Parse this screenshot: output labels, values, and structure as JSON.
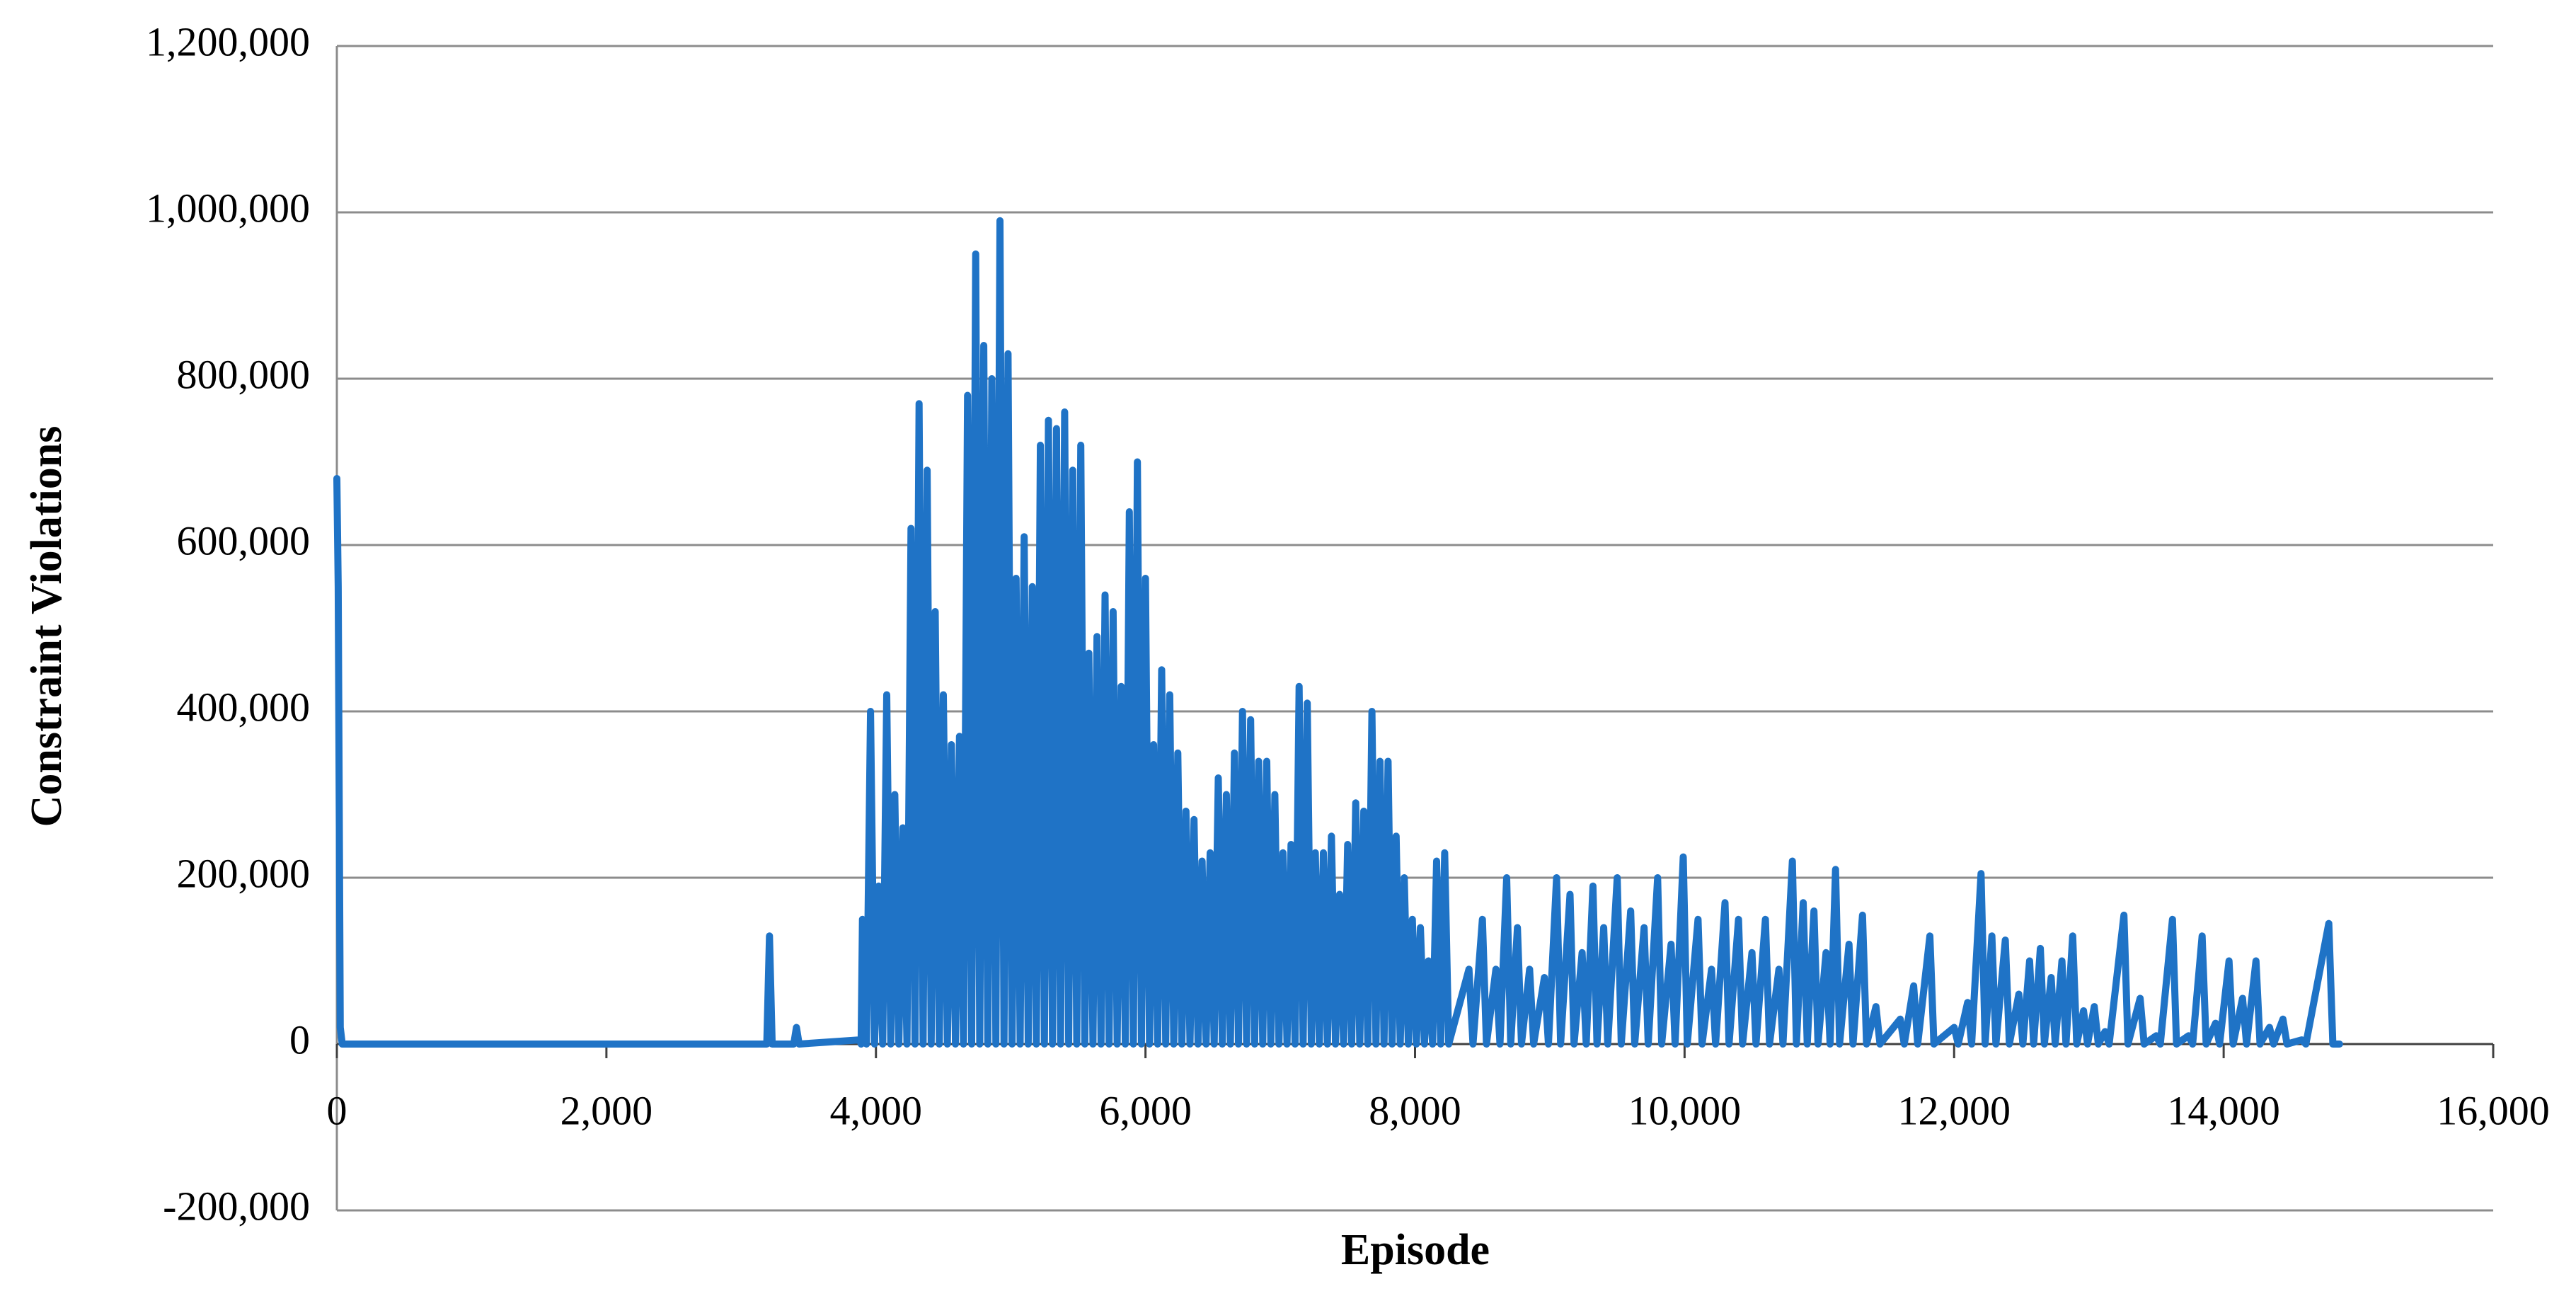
{
  "chart_data": {
    "type": "line",
    "x_label": "Episode",
    "y_label": "Constraint Violations",
    "color": "#1f73c6",
    "grid": true,
    "xlim": [
      0,
      16000
    ],
    "xticks": [
      0,
      {
        "value": 2000,
        "label": "2,000"
      },
      {
        "value": 4000,
        "label": "4,000"
      },
      {
        "value": 6000,
        "label": "6,000"
      },
      {
        "value": 8000,
        "label": "8,000"
      },
      {
        "value": 10000,
        "label": "10,000"
      },
      {
        "value": 12000,
        "label": "12,000"
      },
      {
        "value": 14000,
        "label": "14,000"
      },
      {
        "value": 16000,
        "label": "16,000"
      }
    ],
    "ylim": [
      -200000,
      1200000
    ],
    "yticks": [
      {
        "value": -200000,
        "label": "-200,000"
      },
      0,
      {
        "value": 200000,
        "label": "200,000"
      },
      {
        "value": 400000,
        "label": "400,000"
      },
      {
        "value": 600000,
        "label": "600,000"
      },
      {
        "value": 800000,
        "label": "800,000"
      },
      {
        "value": 1000000,
        "label": "1,000,000"
      },
      {
        "value": 1200000,
        "label": "1,200,000"
      }
    ],
    "x": [
      0,
      10,
      25,
      40,
      3190,
      3210,
      3230,
      3390,
      3410,
      3430,
      3880,
      3890,
      3900,
      3930,
      3960,
      3990,
      4020,
      4050,
      4080,
      4110,
      4140,
      4170,
      4200,
      4230,
      4260,
      4290,
      4320,
      4350,
      4380,
      4410,
      4440,
      4470,
      4500,
      4530,
      4560,
      4590,
      4620,
      4650,
      4680,
      4710,
      4740,
      4770,
      4800,
      4830,
      4860,
      4890,
      4920,
      4950,
      4980,
      5010,
      5040,
      5070,
      5100,
      5130,
      5160,
      5190,
      5220,
      5250,
      5280,
      5310,
      5340,
      5370,
      5400,
      5430,
      5460,
      5490,
      5520,
      5550,
      5580,
      5610,
      5640,
      5670,
      5700,
      5730,
      5760,
      5790,
      5820,
      5850,
      5880,
      5910,
      5940,
      5970,
      6000,
      6030,
      6060,
      6090,
      6120,
      6150,
      6180,
      6210,
      6240,
      6270,
      6300,
      6330,
      6360,
      6390,
      6420,
      6450,
      6480,
      6510,
      6540,
      6570,
      6600,
      6630,
      6660,
      6690,
      6720,
      6750,
      6780,
      6810,
      6840,
      6870,
      6900,
      6930,
      6960,
      6990,
      7020,
      7050,
      7080,
      7110,
      7140,
      7170,
      7200,
      7230,
      7260,
      7290,
      7320,
      7350,
      7380,
      7410,
      7440,
      7470,
      7500,
      7530,
      7560,
      7590,
      7620,
      7650,
      7680,
      7710,
      7740,
      7770,
      7800,
      7830,
      7860,
      7890,
      7920,
      7950,
      7980,
      8010,
      8040,
      8070,
      8100,
      8130,
      8160,
      8190,
      8220,
      8250,
      8400,
      8430,
      8500,
      8530,
      8600,
      8630,
      8680,
      8710,
      8760,
      8790,
      8850,
      8880,
      8960,
      8990,
      9050,
      9080,
      9150,
      9180,
      9240,
      9270,
      9320,
      9350,
      9400,
      9430,
      9500,
      9530,
      9600,
      9630,
      9700,
      9730,
      9800,
      9830,
      9900,
      9930,
      9990,
      10020,
      10100,
      10130,
      10200,
      10230,
      10300,
      10330,
      10400,
      10430,
      10500,
      10530,
      10600,
      10630,
      10700,
      10730,
      10800,
      10830,
      10880,
      10910,
      10960,
      10990,
      11050,
      11080,
      11120,
      11150,
      11220,
      11250,
      11320,
      11350,
      11420,
      11450,
      11600,
      11630,
      11700,
      11730,
      11820,
      11850,
      12000,
      12030,
      12100,
      12130,
      12200,
      12230,
      12280,
      12310,
      12380,
      12410,
      12480,
      12510,
      12560,
      12590,
      12640,
      12670,
      12720,
      12750,
      12800,
      12830,
      12880,
      12910,
      12960,
      12990,
      13040,
      13070,
      13120,
      13150,
      13260,
      13290,
      13380,
      13410,
      13500,
      13530,
      13620,
      13650,
      13740,
      13770,
      13840,
      13870,
      13940,
      13970,
      14040,
      14070,
      14140,
      14170,
      14240,
      14270,
      14340,
      14370,
      14440,
      14470,
      14580,
      14610,
      14780,
      14810,
      14860
    ],
    "values": [
      680000,
      550000,
      20000,
      0,
      0,
      130000,
      0,
      0,
      20000,
      0,
      5000,
      0,
      150000,
      0,
      400000,
      0,
      190000,
      0,
      420000,
      0,
      300000,
      0,
      260000,
      0,
      620000,
      0,
      770000,
      0,
      690000,
      0,
      520000,
      0,
      420000,
      0,
      360000,
      0,
      370000,
      0,
      780000,
      0,
      950000,
      0,
      840000,
      0,
      800000,
      0,
      990000,
      0,
      830000,
      0,
      560000,
      0,
      610000,
      0,
      550000,
      0,
      720000,
      0,
      750000,
      0,
      740000,
      0,
      760000,
      0,
      690000,
      0,
      720000,
      0,
      470000,
      0,
      490000,
      0,
      540000,
      0,
      520000,
      0,
      430000,
      0,
      640000,
      0,
      700000,
      0,
      560000,
      0,
      360000,
      0,
      450000,
      0,
      420000,
      0,
      350000,
      0,
      280000,
      0,
      270000,
      0,
      220000,
      0,
      230000,
      0,
      320000,
      0,
      300000,
      0,
      350000,
      0,
      400000,
      0,
      390000,
      0,
      340000,
      0,
      340000,
      0,
      300000,
      0,
      230000,
      0,
      240000,
      0,
      430000,
      0,
      410000,
      0,
      230000,
      0,
      230000,
      0,
      250000,
      0,
      180000,
      0,
      240000,
      0,
      290000,
      0,
      280000,
      0,
      400000,
      0,
      340000,
      0,
      340000,
      0,
      250000,
      0,
      200000,
      0,
      150000,
      0,
      140000,
      0,
      100000,
      0,
      220000,
      0,
      230000,
      0,
      90000,
      0,
      150000,
      0,
      90000,
      0,
      200000,
      0,
      140000,
      0,
      90000,
      0,
      80000,
      0,
      200000,
      0,
      180000,
      0,
      110000,
      0,
      190000,
      0,
      140000,
      0,
      200000,
      0,
      160000,
      0,
      140000,
      0,
      200000,
      0,
      120000,
      0,
      225000,
      0,
      150000,
      0,
      90000,
      0,
      170000,
      0,
      150000,
      0,
      110000,
      0,
      150000,
      0,
      90000,
      0,
      220000,
      0,
      170000,
      0,
      160000,
      0,
      110000,
      0,
      210000,
      0,
      120000,
      0,
      155000,
      0,
      45000,
      0,
      30000,
      0,
      70000,
      0,
      130000,
      0,
      20000,
      0,
      50000,
      0,
      205000,
      0,
      130000,
      0,
      125000,
      0,
      60000,
      0,
      100000,
      0,
      115000,
      0,
      80000,
      0,
      100000,
      0,
      130000,
      0,
      40000,
      0,
      45000,
      0,
      15000,
      0,
      155000,
      0,
      55000,
      0,
      10000,
      0,
      150000,
      0,
      10000,
      0,
      130000,
      0,
      25000,
      0,
      100000,
      0,
      55000,
      0,
      100000,
      0,
      20000,
      0,
      30000,
      0,
      5000,
      0,
      145000,
      0,
      0
    ]
  }
}
